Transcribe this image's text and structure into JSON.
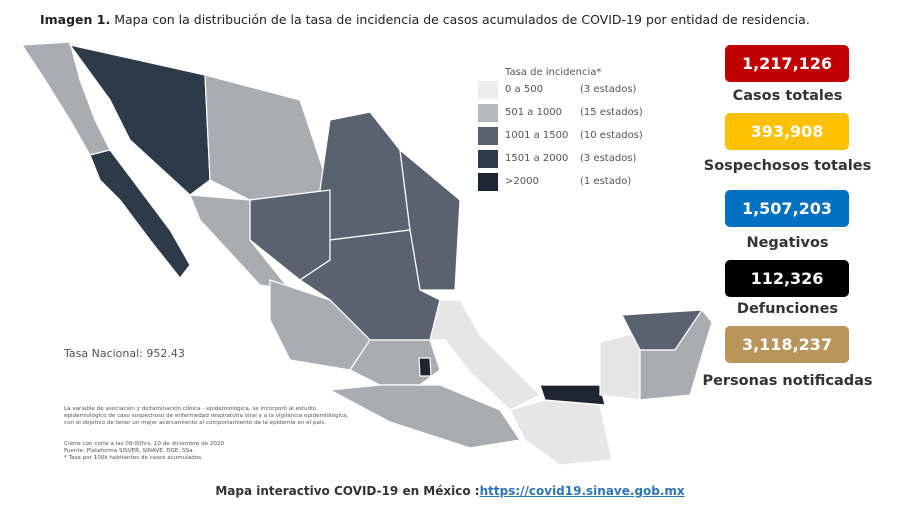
{
  "header": {
    "title_bold": "Imagen 1.",
    "title": "Mapa con la distribución de la tasa de incidencia de casos acumulados de COVID-19 por entidad de residencia."
  },
  "legend": {
    "title": "Tasa de incidencia*",
    "items": [
      {
        "range": "0 a 500",
        "count": "(3 estados)"
      },
      {
        "range": "501 a 1000",
        "count": "(15 estados)"
      },
      {
        "range": "1001 a 1500",
        "count": "(10 estados)"
      },
      {
        "range": "1501 a 2000",
        "count": "(3 estados)"
      },
      {
        "range": ">2000",
        "count": "(1 estado)"
      }
    ]
  },
  "national_rate": "Tasa Nacional: 952.43",
  "stats": [
    {
      "value": "1,217,126",
      "label": "Casos totales"
    },
    {
      "value": "393,908",
      "label": "Sospechosos totales"
    },
    {
      "value": "1,507,203",
      "label": "Negativos"
    },
    {
      "value": "112,326",
      "label": "Defunciones"
    },
    {
      "value": "3,118,237",
      "label": "Personas notificadas"
    }
  ],
  "notes": [
    "La variable de asociación y dictaminación clínica - epidemiológica, se incorporó al estudio",
    "epidemiológico de caso sospechoso de enfermedad respiratoria viral y a la vigilancia epidemiológica,",
    "con el objetivo de tener un mejor acercamiento al comportamiento de la epidemia en el país.",
    "Cierre con corte a las 09:00hrs, 10 de diciembre de 2020",
    "Fuente: Plataforma SISVER, SINAVE, DGE, SSa.",
    "* Tasa por 100k habitantes de casos acumulados."
  ],
  "footer": {
    "text": "Mapa interactivo COVID-19 en México :",
    "link": "https://covid19.sinave.gob.mx"
  }
}
